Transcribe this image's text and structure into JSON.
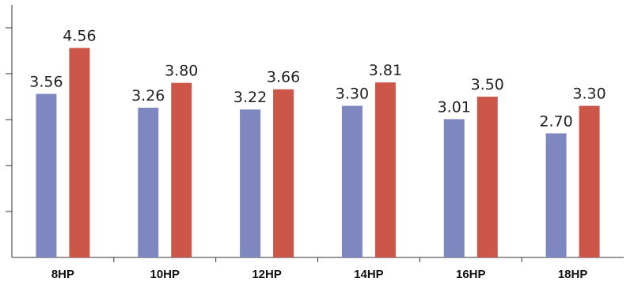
{
  "chart_data": {
    "type": "bar",
    "title": "",
    "xlabel": "",
    "ylabel": "",
    "categories": [
      "8HP",
      "10HP",
      "12HP",
      "14HP",
      "16HP",
      "18HP"
    ],
    "series": [
      {
        "values": [
          3.56,
          3.26,
          3.22,
          3.3,
          3.01,
          2.7
        ],
        "labels": [
          "3.56",
          "3.26",
          "3.22",
          "3.30",
          "3.01",
          "2.70"
        ],
        "color": "#7e87c0"
      },
      {
        "values": [
          4.56,
          3.8,
          3.66,
          3.81,
          3.5,
          3.3
        ],
        "labels": [
          "4.56",
          "3.80",
          "3.66",
          "3.81",
          "3.50",
          "3.30"
        ],
        "color": "#cc5748"
      }
    ],
    "ylim": [
      0,
      5.5
    ],
    "y_tick_marks": 5,
    "grid": false,
    "legend": "none",
    "y_tick_labels_shown": false
  }
}
